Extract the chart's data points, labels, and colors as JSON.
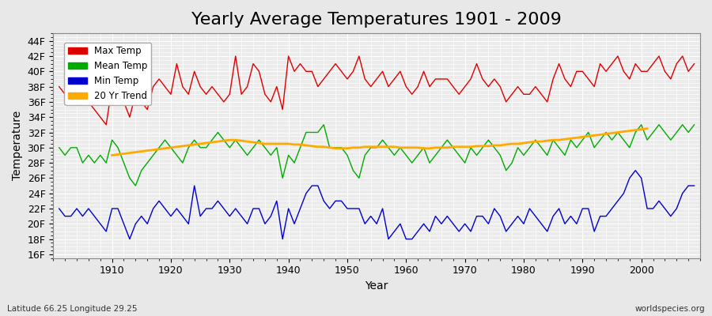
{
  "title": "Yearly Average Temperatures 1901 - 2009",
  "xlabel": "Year",
  "ylabel": "Temperature",
  "years_start": 1901,
  "years_end": 2009,
  "yticks": [
    16,
    18,
    20,
    22,
    24,
    26,
    28,
    30,
    32,
    34,
    36,
    38,
    40,
    42,
    44
  ],
  "ylim": [
    15.5,
    45.0
  ],
  "xlim": [
    1900,
    2010
  ],
  "bg_color": "#e8e8e8",
  "plot_bg_color": "#ebebeb",
  "grid_color": "#ffffff",
  "legend_labels": [
    "Max Temp",
    "Mean Temp",
    "Min Temp",
    "20 Yr Trend"
  ],
  "legend_colors": [
    "#dd0000",
    "#00aa00",
    "#0000cc",
    "#ffaa00"
  ],
  "max_temp": [
    38,
    37,
    37,
    38,
    37,
    36,
    35,
    34,
    33,
    38,
    39,
    36,
    34,
    37,
    36,
    35,
    38,
    39,
    38,
    37,
    41,
    38,
    37,
    40,
    38,
    37,
    38,
    37,
    36,
    37,
    42,
    37,
    38,
    41,
    40,
    37,
    36,
    38,
    35,
    42,
    40,
    41,
    40,
    40,
    38,
    39,
    40,
    41,
    40,
    39,
    40,
    42,
    39,
    38,
    39,
    40,
    38,
    39,
    40,
    38,
    37,
    38,
    40,
    38,
    39,
    39,
    39,
    38,
    37,
    38,
    39,
    41,
    39,
    38,
    39,
    38,
    36,
    37,
    38,
    37,
    37,
    38,
    37,
    36,
    39,
    41,
    39,
    38,
    40,
    40,
    39,
    38,
    41,
    40,
    41,
    42,
    40,
    39,
    41,
    40,
    40,
    41,
    42,
    40,
    39,
    41,
    42,
    40,
    41
  ],
  "mean_temp": [
    30,
    29,
    30,
    30,
    28,
    29,
    28,
    29,
    28,
    31,
    30,
    28,
    26,
    25,
    27,
    28,
    29,
    30,
    31,
    30,
    29,
    28,
    30,
    31,
    30,
    30,
    31,
    32,
    31,
    30,
    31,
    30,
    29,
    30,
    31,
    30,
    29,
    30,
    26,
    29,
    28,
    30,
    32,
    32,
    32,
    33,
    30,
    30,
    30,
    29,
    27,
    26,
    29,
    30,
    30,
    31,
    30,
    29,
    30,
    29,
    28,
    29,
    30,
    28,
    29,
    30,
    31,
    30,
    29,
    28,
    30,
    29,
    30,
    31,
    30,
    29,
    27,
    28,
    30,
    29,
    30,
    31,
    30,
    29,
    31,
    30,
    29,
    31,
    30,
    31,
    32,
    30,
    31,
    32,
    31,
    32,
    31,
    30,
    32,
    33,
    31,
    32,
    33,
    32,
    31,
    32,
    33,
    32,
    33
  ],
  "min_temp": [
    22,
    21,
    21,
    22,
    21,
    22,
    21,
    20,
    19,
    22,
    22,
    20,
    18,
    20,
    21,
    20,
    22,
    23,
    22,
    21,
    22,
    21,
    20,
    25,
    21,
    22,
    22,
    23,
    22,
    21,
    22,
    21,
    20,
    22,
    22,
    20,
    21,
    23,
    18,
    22,
    20,
    22,
    24,
    25,
    25,
    23,
    22,
    23,
    23,
    22,
    22,
    22,
    20,
    21,
    20,
    22,
    18,
    19,
    20,
    18,
    18,
    19,
    20,
    19,
    21,
    20,
    21,
    20,
    19,
    20,
    19,
    21,
    21,
    20,
    22,
    21,
    19,
    20,
    21,
    20,
    22,
    21,
    20,
    19,
    21,
    22,
    20,
    21,
    20,
    22,
    22,
    19,
    21,
    21,
    22,
    23,
    24,
    26,
    27,
    26,
    22,
    22,
    23,
    22,
    21,
    22,
    24,
    25,
    25
  ],
  "trend_start_year": 1910,
  "trend": [
    29.0,
    29.1,
    29.2,
    29.3,
    29.4,
    29.5,
    29.6,
    29.7,
    29.8,
    29.9,
    30.0,
    30.1,
    30.2,
    30.3,
    30.4,
    30.5,
    30.6,
    30.7,
    30.8,
    30.9,
    31.0,
    31.0,
    30.9,
    30.8,
    30.7,
    30.6,
    30.5,
    30.5,
    30.5,
    30.5,
    30.5,
    30.4,
    30.4,
    30.3,
    30.2,
    30.1,
    30.1,
    30.0,
    29.9,
    29.9,
    29.9,
    30.0,
    30.0,
    30.1,
    30.1,
    30.1,
    30.1,
    30.1,
    30.1,
    30.0,
    30.0,
    30.0,
    30.0,
    29.9,
    29.9,
    30.0,
    30.0,
    30.0,
    30.1,
    30.1,
    30.1,
    30.1,
    30.2,
    30.2,
    30.2,
    30.3,
    30.3,
    30.4,
    30.5,
    30.5,
    30.6,
    30.7,
    30.8,
    30.8,
    30.9,
    31.0,
    31.0,
    31.1,
    31.2,
    31.3,
    31.4,
    31.5,
    31.6,
    31.7,
    31.8,
    31.9,
    32.0,
    32.1,
    32.2,
    32.3,
    32.4,
    32.5
  ],
  "subtitle_left": "Latitude 66.25 Longitude 29.25",
  "subtitle_right": "worldspecies.org",
  "title_fontsize": 16,
  "axis_label_fontsize": 10,
  "tick_fontsize": 9
}
